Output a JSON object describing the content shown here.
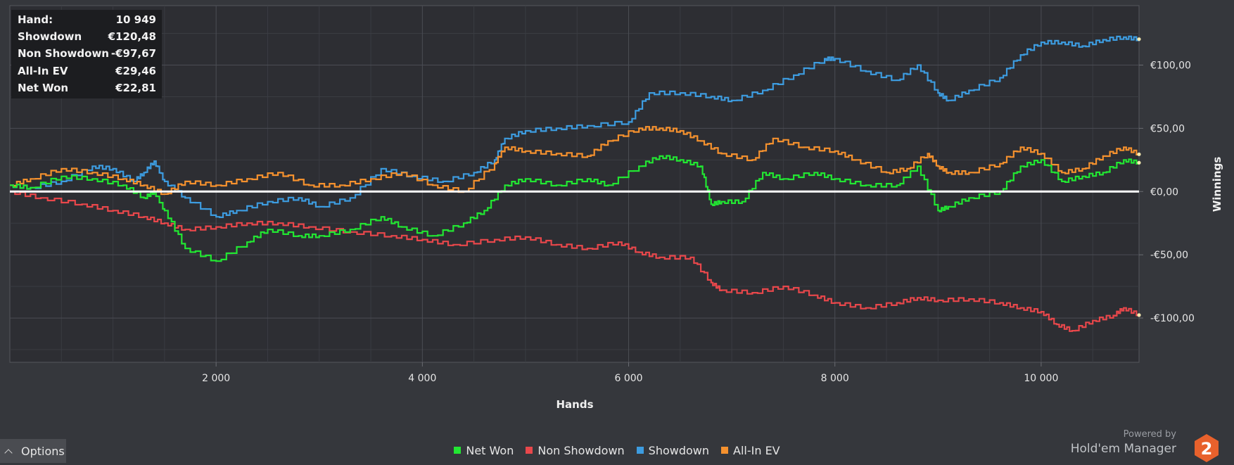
{
  "infobox": {
    "rows": [
      {
        "label": "Hand:",
        "value": "10 949"
      },
      {
        "label": "Showdown",
        "value": "€120,48"
      },
      {
        "label": "Non Showdown",
        "value": "-€97,67"
      },
      {
        "label": "All-In EV",
        "value": "€29,46"
      },
      {
        "label": "Net Won",
        "value": "€22,81"
      }
    ]
  },
  "legend": [
    {
      "label": "Net Won",
      "color": "#22e632"
    },
    {
      "label": "Non Showdown",
      "color": "#e8474b"
    },
    {
      "label": "Showdown",
      "color": "#3d9ce0"
    },
    {
      "label": "All-In EV",
      "color": "#f5912e"
    }
  ],
  "options": {
    "label": "Options",
    "icon": "chevron-up-icon"
  },
  "branding": {
    "powered_by": "Powered by",
    "name": "Hold'em Manager",
    "logo_text": "2",
    "logo_color": "#e8612c"
  },
  "chart_data": {
    "type": "line",
    "xlabel": "Hands",
    "ylabel": "Winnings",
    "xlim": [
      0,
      10949
    ],
    "ylim": [
      -135,
      147
    ],
    "x_ticks": [
      2000,
      4000,
      6000,
      8000,
      10000
    ],
    "x_tick_labels": [
      "2 000",
      "4 000",
      "6 000",
      "8 000",
      "10 000"
    ],
    "y_ticks": [
      100,
      50,
      0,
      -50,
      -100
    ],
    "y_tick_labels": [
      "€100,00",
      "€50,00",
      "€0,00",
      "-€50,00",
      "-€100,00"
    ],
    "zero_line": true,
    "grid": true,
    "series": [
      {
        "name": "Showdown",
        "color": "#3d9ce0",
        "x": [
          0,
          200,
          500,
          800,
          1000,
          1200,
          1300,
          1400,
          1500,
          1700,
          2000,
          2200,
          2500,
          2800,
          3000,
          3300,
          3600,
          3900,
          4200,
          4500,
          4700,
          4800,
          5000,
          5300,
          5600,
          6000,
          6200,
          6500,
          6800,
          7000,
          7300,
          7600,
          7900,
          8000,
          8300,
          8600,
          8800,
          9000,
          9100,
          9300,
          9600,
          9800,
          10000,
          10200,
          10400,
          10600,
          10800,
          10949
        ],
        "y": [
          5,
          3,
          8,
          20,
          18,
          8,
          15,
          24,
          8,
          -5,
          -20,
          -15,
          -8,
          -5,
          -12,
          -5,
          18,
          12,
          8,
          15,
          25,
          42,
          48,
          50,
          52,
          55,
          78,
          78,
          75,
          72,
          80,
          92,
          105,
          105,
          95,
          88,
          100,
          78,
          72,
          80,
          90,
          108,
          118,
          118,
          115,
          120,
          122,
          120.48
        ]
      },
      {
        "name": "Non Showdown",
        "color": "#e8474b",
        "x": [
          0,
          300,
          700,
          1000,
          1300,
          1500,
          1700,
          2000,
          2300,
          2600,
          2900,
          3300,
          3700,
          4000,
          4300,
          4700,
          5000,
          5300,
          5600,
          5900,
          6100,
          6300,
          6600,
          6800,
          6900,
          7200,
          7500,
          7800,
          8000,
          8300,
          8600,
          8800,
          9000,
          9300,
          9600,
          9800,
          10000,
          10150,
          10300,
          10500,
          10700,
          10800,
          10949
        ],
        "y": [
          0,
          -5,
          -10,
          -15,
          -20,
          -25,
          -30,
          -28,
          -25,
          -25,
          -28,
          -32,
          -35,
          -38,
          -42,
          -38,
          -36,
          -42,
          -45,
          -40,
          -48,
          -52,
          -52,
          -72,
          -78,
          -80,
          -75,
          -82,
          -88,
          -92,
          -88,
          -84,
          -86,
          -85,
          -88,
          -92,
          -95,
          -105,
          -110,
          -102,
          -98,
          -92,
          -97.67
        ]
      },
      {
        "name": "All-In EV",
        "color": "#f5912e",
        "x": [
          0,
          200,
          500,
          800,
          1100,
          1300,
          1500,
          1700,
          2000,
          2300,
          2600,
          2900,
          3200,
          3500,
          3800,
          4100,
          4400,
          4700,
          4800,
          5000,
          5300,
          5600,
          5800,
          6100,
          6300,
          6500,
          6700,
          6900,
          7200,
          7400,
          7700,
          8000,
          8200,
          8500,
          8700,
          8900,
          9000,
          9100,
          9300,
          9600,
          9800,
          10000,
          10200,
          10400,
          10600,
          10800,
          10949
        ],
        "y": [
          5,
          10,
          18,
          15,
          10,
          5,
          -2,
          8,
          5,
          10,
          15,
          5,
          5,
          10,
          15,
          5,
          0,
          22,
          35,
          32,
          30,
          28,
          40,
          50,
          50,
          48,
          40,
          30,
          25,
          42,
          35,
          32,
          25,
          15,
          18,
          30,
          20,
          15,
          15,
          22,
          35,
          30,
          15,
          18,
          28,
          35,
          29.46
        ]
      },
      {
        "name": "Net Won",
        "color": "#22e632",
        "x": [
          0,
          200,
          500,
          800,
          1100,
          1300,
          1400,
          1500,
          1700,
          2000,
          2300,
          2500,
          2800,
          3000,
          3300,
          3600,
          3800,
          4100,
          4400,
          4600,
          4800,
          5000,
          5300,
          5600,
          5800,
          6100,
          6300,
          6500,
          6700,
          6800,
          6900,
          7100,
          7300,
          7500,
          7800,
          8000,
          8300,
          8600,
          8800,
          9000,
          9100,
          9300,
          9600,
          9800,
          10000,
          10200,
          10400,
          10600,
          10800,
          10949
        ],
        "y": [
          5,
          3,
          12,
          10,
          5,
          -5,
          0,
          -15,
          -45,
          -55,
          -40,
          -30,
          -35,
          -35,
          -30,
          -20,
          -28,
          -35,
          -25,
          -15,
          5,
          10,
          5,
          10,
          5,
          20,
          28,
          25,
          20,
          -10,
          -8,
          -8,
          15,
          10,
          15,
          10,
          5,
          5,
          20,
          -15,
          -12,
          -5,
          0,
          20,
          25,
          8,
          12,
          15,
          25,
          22.81
        ]
      }
    ]
  }
}
